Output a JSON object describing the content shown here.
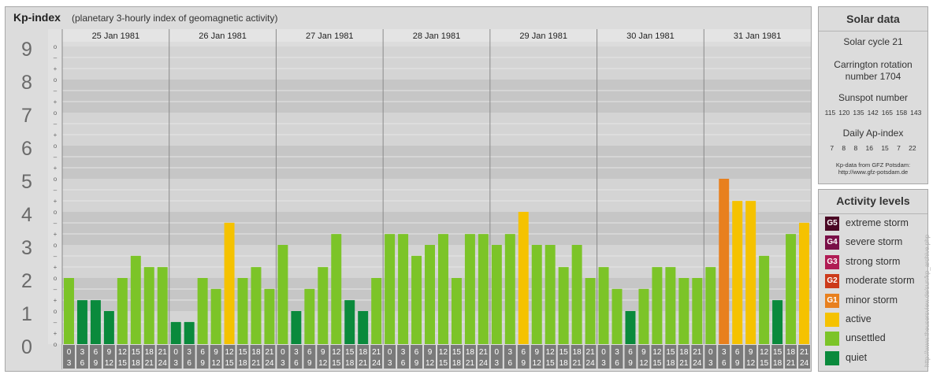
{
  "header": {
    "title": "Kp-index",
    "subtitle": "(planetary 3-hourly index of geomagnetic activity)"
  },
  "chart_data": {
    "type": "bar",
    "title": "Kp-index",
    "subtitle": "(planetary 3-hourly index of geomagnetic activity)",
    "ylim": [
      0,
      9
    ],
    "y_ticks": [
      "0",
      "1",
      "2",
      "3",
      "4",
      "5",
      "6",
      "7",
      "8",
      "9"
    ],
    "y_minor_labels": [
      "o",
      "+",
      "–"
    ],
    "days": [
      "25 Jan 1981",
      "26 Jan 1981",
      "27 Jan 1981",
      "28 Jan 1981",
      "29 Jan 1981",
      "30 Jan 1981",
      "31 Jan 1981"
    ],
    "slot_start_labels": [
      "0",
      "3",
      "6",
      "9",
      "12",
      "15",
      "18",
      "21"
    ],
    "slot_end_labels": [
      "3",
      "6",
      "9",
      "12",
      "15",
      "18",
      "21",
      "24"
    ],
    "values": [
      2.0,
      1.33,
      1.33,
      1.0,
      2.0,
      2.67,
      2.33,
      2.33,
      0.67,
      0.67,
      2.0,
      1.67,
      3.67,
      2.0,
      2.33,
      1.67,
      3.0,
      1.0,
      1.67,
      2.33,
      3.33,
      1.33,
      1.0,
      2.0,
      3.33,
      3.33,
      2.67,
      3.0,
      3.33,
      2.0,
      3.33,
      3.33,
      3.0,
      3.33,
      4.0,
      3.0,
      3.0,
      2.33,
      3.0,
      2.0,
      2.33,
      1.67,
      1.0,
      1.67,
      2.33,
      2.33,
      2.0,
      2.0,
      2.33,
      5.0,
      4.33,
      4.33,
      2.67,
      1.33,
      3.33,
      3.67
    ],
    "level_colors": {
      "quiet": "#0a8a3c",
      "unsettled": "#7cc428",
      "active": "#f5c200",
      "G1": "#e8801e",
      "G2": "#cc3a1a",
      "G3": "#b01c54",
      "G4": "#7a1048",
      "G5": "#4a0824"
    },
    "grid": true
  },
  "solar": {
    "title": "Solar data",
    "cycle": "Solar cycle 21",
    "carrington_line1": "Carrington rotation",
    "carrington_line2": "number 1704",
    "sunspot_title": "Sunspot number",
    "sunspot_values": [
      "115",
      "120",
      "135",
      "142",
      "165",
      "158",
      "143"
    ],
    "ap_title": "Daily Ap-index",
    "ap_values": [
      "7",
      "8",
      "8",
      "16",
      "15",
      "7",
      "22"
    ],
    "source_line1": "Kp-data from GFZ Potsdam:",
    "source_line2": "http://www.gfz-potsdam.de"
  },
  "levels": {
    "title": "Activity levels",
    "items": [
      {
        "code": "G5",
        "label": "extreme storm",
        "color": "#4a0824"
      },
      {
        "code": "G4",
        "label": "severe storm",
        "color": "#7a1048"
      },
      {
        "code": "G3",
        "label": "strong storm",
        "color": "#b01c54"
      },
      {
        "code": "G2",
        "label": "moderate storm",
        "color": "#cc3a1a"
      },
      {
        "code": "G1",
        "label": "minor storm",
        "color": "#e8801e"
      },
      {
        "code": "",
        "label": "active",
        "color": "#f5c200"
      },
      {
        "code": "",
        "label": "unsettled",
        "color": "#7cc428"
      },
      {
        "code": "",
        "label": "quiet",
        "color": "#0a8a3c"
      }
    ]
  },
  "credit": "http://www.theusersview.de/sun/kp_archive.php"
}
